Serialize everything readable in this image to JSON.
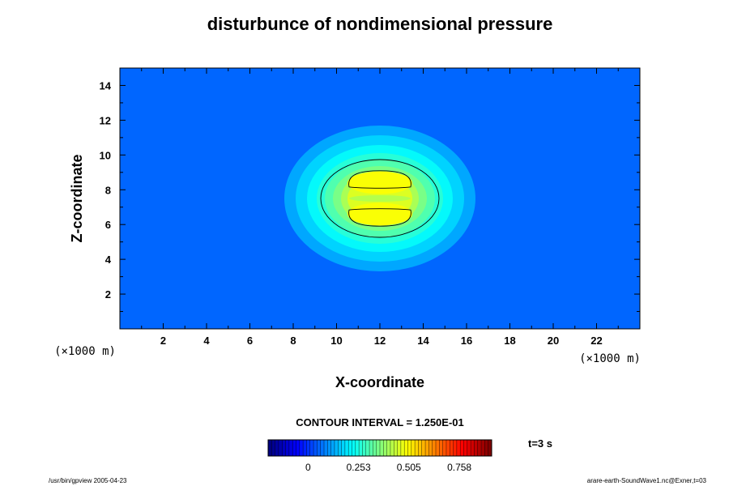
{
  "chart_data": {
    "type": "heatmap",
    "title": "disturbunce of nondimensional pressure",
    "xlabel": "X-coordinate",
    "ylabel": "Z-coordinate",
    "x_unit": "(×1000 m)",
    "y_unit": "(×1000 m)",
    "xlim": [
      0,
      24
    ],
    "ylim": [
      0,
      15
    ],
    "x_ticks": [
      "2",
      "4",
      "6",
      "8",
      "10",
      "12",
      "14",
      "16",
      "18",
      "20",
      "22"
    ],
    "y_ticks": [
      "2",
      "4",
      "6",
      "8",
      "10",
      "12",
      "14"
    ],
    "field": {
      "shape": "gaussian_bubble",
      "center_x": 12,
      "center_z": 7.5,
      "peak_value": 0.62,
      "background_value": 0,
      "contour_levels": [
        0.125,
        0.5
      ]
    },
    "contour_interval_label": "CONTOUR INTERVAL = 1.250E-01",
    "colorbar": {
      "min": 0,
      "max": 1,
      "tick_labels": [
        "0",
        "0.253",
        "0.505",
        "0.758"
      ],
      "tick_values": [
        0,
        0.253,
        0.505,
        0.758
      ]
    },
    "time_label": "t=3 s",
    "footer_left": "/usr/bin/gpview 2005-04-23",
    "footer_right": "arare-earth-SoundWave1.nc@Exner,t=03"
  }
}
